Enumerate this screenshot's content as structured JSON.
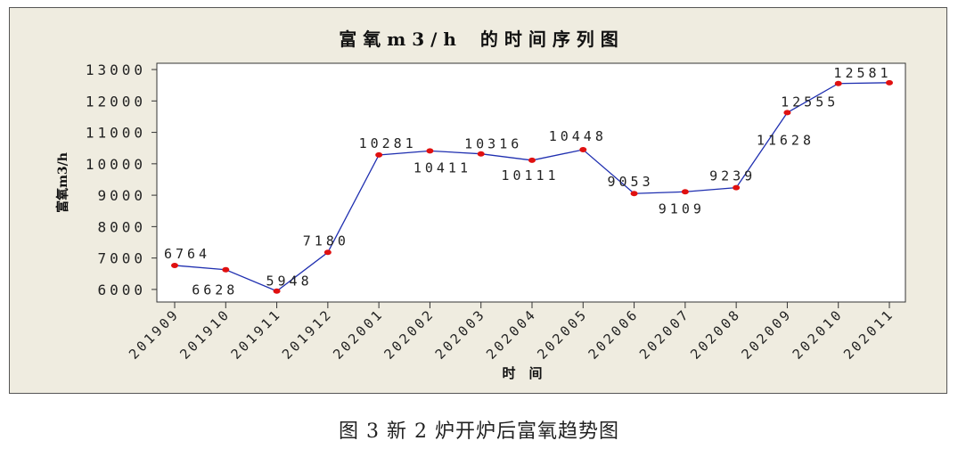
{
  "caption": "图 3 新 2 炉开炉后富氧趋势图",
  "chart_data": {
    "type": "line",
    "title": "富 氧 m 3 / h　 的 时 间 序 列 图",
    "xlabel": "时　间",
    "ylabel": "富氧m3/h",
    "ylim": [
      5600,
      13200
    ],
    "yticks": [
      6000,
      7000,
      8000,
      9000,
      10000,
      11000,
      12000,
      13000
    ],
    "categories": [
      "201909",
      "201910",
      "201911",
      "201912",
      "202001",
      "202002",
      "202003",
      "202004",
      "202005",
      "202006",
      "202007",
      "202008",
      "202009",
      "202010",
      "202011"
    ],
    "series": [
      {
        "values": [
          6764,
          6628,
          5948,
          7180,
          10281,
          10411,
          10316,
          10111,
          10448,
          9053,
          9109,
          9239,
          11628,
          12555,
          12581
        ]
      }
    ],
    "line_color": "#1f2fb0",
    "marker_color": "#e01010",
    "grid": false
  }
}
